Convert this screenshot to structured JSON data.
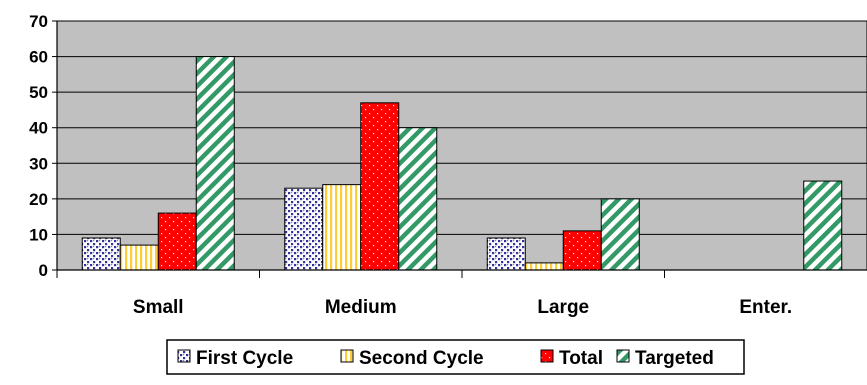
{
  "chart_data": {
    "type": "bar",
    "categories": [
      "Small",
      "Medium",
      "Large",
      "Enter."
    ],
    "series": [
      {
        "name": "First Cycle",
        "values": [
          9,
          23,
          9,
          0
        ],
        "pattern": "dots-blue"
      },
      {
        "name": "Second Cycle",
        "values": [
          7,
          24,
          2,
          0
        ],
        "pattern": "vstripes-yellow"
      },
      {
        "name": "Total",
        "values": [
          16,
          47,
          11,
          0
        ],
        "pattern": "dots-red"
      },
      {
        "name": "Targeted",
        "values": [
          60,
          40,
          20,
          25
        ],
        "pattern": "diag-green"
      }
    ],
    "ylim": [
      0,
      70
    ],
    "yticks": [
      0,
      10,
      20,
      30,
      40,
      50,
      60,
      70
    ],
    "grid": true,
    "plot_background": "#c0c0c0",
    "legend_position": "bottom"
  }
}
